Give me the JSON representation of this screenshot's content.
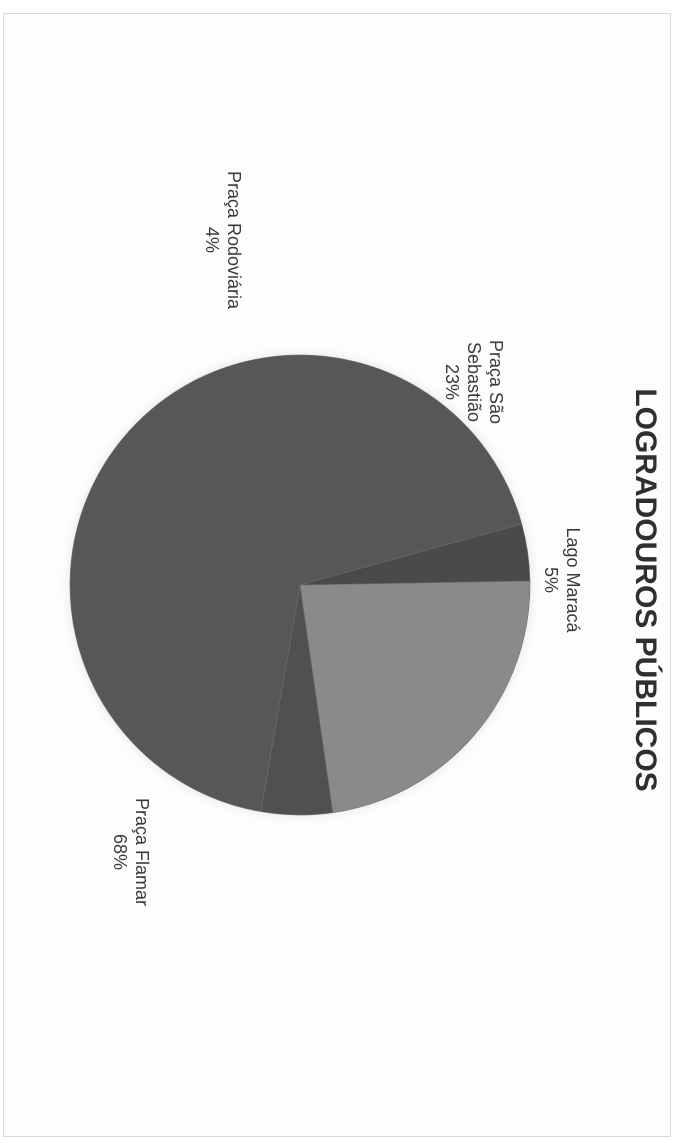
{
  "chart_data": {
    "type": "pie",
    "title": "LOGRADOUROS PÚBLICOS",
    "slices": [
      {
        "name": "Praça São Sebastião",
        "label_lines": [
          "Praça São",
          "Sebastião"
        ],
        "value": 23,
        "value_label": "23%",
        "color": "#8a8a8a"
      },
      {
        "name": "Lago Maracá",
        "label_lines": [
          "Lago Maracá"
        ],
        "value": 5,
        "value_label": "5%",
        "color": "#505050"
      },
      {
        "name": "Praça Flamar",
        "label_lines": [
          "Praça Flamar"
        ],
        "value": 68,
        "value_label": "68%",
        "color": "#575757"
      },
      {
        "name": "Praça Rodoviária",
        "label_lines": [
          "Praça Rodoviária"
        ],
        "value": 4,
        "value_label": "4%",
        "color": "#4a4a4a"
      }
    ],
    "legend": "none"
  }
}
